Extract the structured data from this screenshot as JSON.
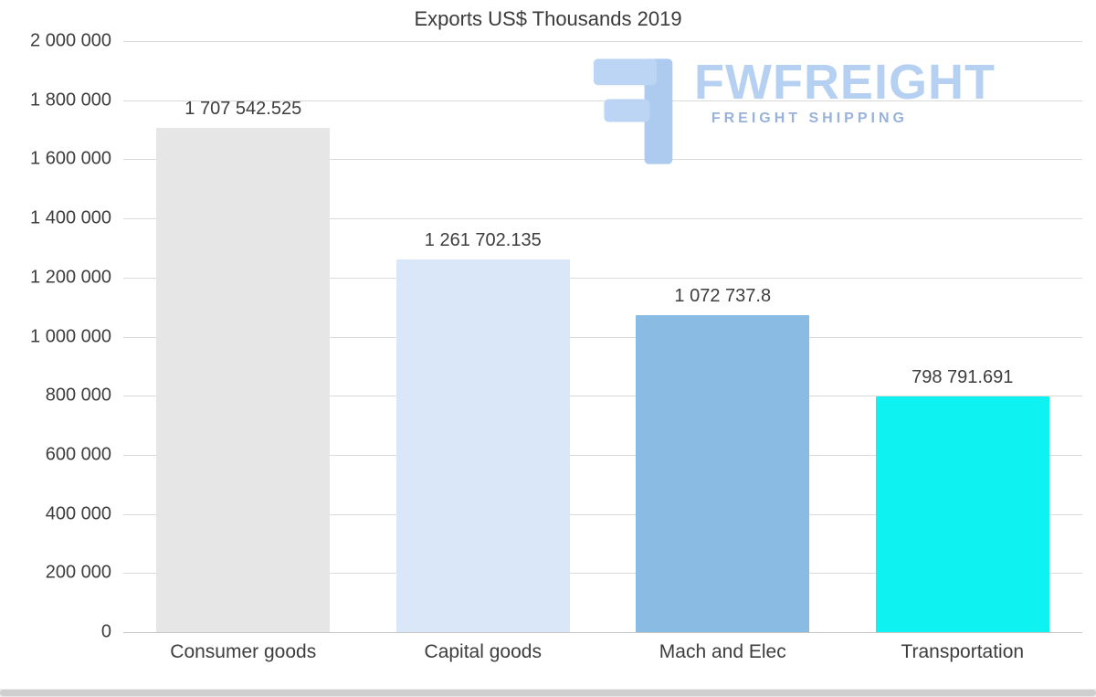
{
  "watermark": {
    "brand": "FWFREIGHT",
    "tagline": "FREIGHT SHIPPING",
    "brand_color": "#b3cef2",
    "tagline_color": "#93aed8",
    "icon": "fwfreight-monogram-icon"
  },
  "chart_data": {
    "type": "bar",
    "title": "Exports US$ Thousands 2019",
    "categories": [
      "Consumer goods",
      "Capital goods",
      "Mach and Elec",
      "Transportation"
    ],
    "values": [
      1707542.525,
      1261702.135,
      1072737.8,
      798791.691
    ],
    "value_labels": [
      "1 707 542.525",
      "1 261 702.135",
      "1 072 737.8",
      "798 791.691"
    ],
    "bar_colors": [
      "#e6e6e6",
      "#d9e7f8",
      "#8abbe2",
      "#0ef2f2"
    ],
    "xlabel": "",
    "ylabel": "",
    "ylim": [
      0,
      2000000
    ],
    "ytick_step": 200000,
    "ytick_labels": [
      "0",
      "200 000",
      "400 000",
      "600 000",
      "800 000",
      "1 000 000",
      "1 200 000",
      "1 400 000",
      "1 600 000",
      "1 800 000",
      "2 000 000"
    ],
    "grid": true,
    "legend": "none",
    "grid_color": "#dadada",
    "text_color": "#3d3d3d"
  }
}
